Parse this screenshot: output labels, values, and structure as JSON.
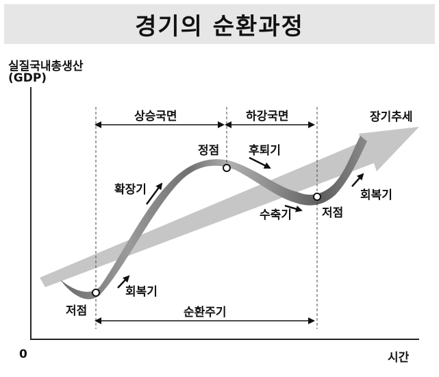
{
  "title": "경기의 순환과정",
  "axis": {
    "y_label": "실질국내총생산",
    "y_label_sub": "(GDP)",
    "origin": "0",
    "x_label": "시간"
  },
  "phases": {
    "expansion_phase": "상승국면",
    "contraction_phase": "하강국면"
  },
  "stages": {
    "trough_left": "저점",
    "recovery_left": "회복기",
    "expansion": "확장기",
    "peak": "정점",
    "recession": "후퇴기",
    "contraction": "수축기",
    "trough_right": "저점",
    "recovery_right": "회복기"
  },
  "trend_label": "장기추세",
  "cycle_label": "순환주기",
  "colors": {
    "trend_band": "#c8c8c8",
    "wave_light": "#bdbdbd",
    "wave_dark": "#5a5a5a",
    "title_bg": "#e6e6e6"
  }
}
